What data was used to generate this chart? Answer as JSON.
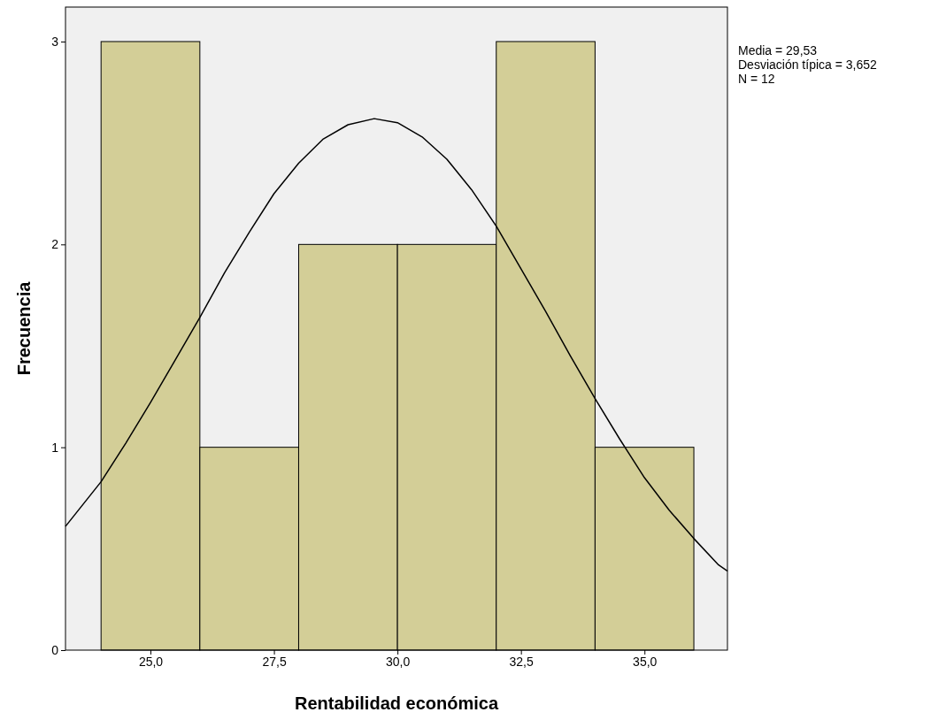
{
  "chart_data": {
    "type": "histogram",
    "xlabel": "Rentabilidad económica",
    "ylabel": "Frecuencia",
    "annotations": [
      "Media = 29,53",
      "Desviación típica = 3,652",
      "N = 12"
    ],
    "bins": [
      24,
      26,
      28,
      30,
      32,
      34,
      36
    ],
    "series": [
      {
        "color": "#d3ce97",
        "values": [
          3,
          1,
          2,
          2,
          3,
          1
        ]
      },
      {
        "type": "line",
        "color": "#000000",
        "x": [
          23.28,
          24,
          24.5,
          25,
          25.5,
          26,
          26.5,
          27,
          27.5,
          28,
          28.5,
          29,
          29.53,
          30,
          30.5,
          31,
          31.5,
          32,
          32.5,
          33,
          33.5,
          34,
          34.5,
          35,
          35.5,
          36,
          36.5,
          36.68
        ],
        "values": [
          0.61,
          0.83,
          1.02,
          1.22,
          1.43,
          1.64,
          1.86,
          2.06,
          2.25,
          2.4,
          2.52,
          2.59,
          2.62,
          2.6,
          2.53,
          2.42,
          2.27,
          2.09,
          1.88,
          1.67,
          1.45,
          1.24,
          1.04,
          0.85,
          0.69,
          0.55,
          0.42,
          0.39
        ]
      }
    ],
    "xlim": [
      23.28,
      36.68
    ],
    "ylim": [
      0,
      3.17
    ],
    "xticks": [
      {
        "value": 25,
        "label": "25,0"
      },
      {
        "value": 27.5,
        "label": "27,5"
      },
      {
        "value": 30,
        "label": "30,0"
      },
      {
        "value": 32.5,
        "label": "32,5"
      },
      {
        "value": 35,
        "label": "35,0"
      }
    ],
    "yticks": [
      0,
      1,
      2,
      3
    ],
    "grid": false,
    "marker": "none",
    "line_style": "solid"
  }
}
